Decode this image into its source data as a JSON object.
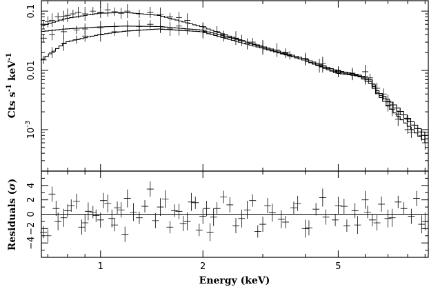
{
  "chart_data": [
    {
      "panel": "spectrum",
      "type": "scatter",
      "xlabel": "Energy (keV)",
      "ylabel": "Cts s^-1 keV^-1",
      "ylabel_text": {
        "base": "Cts s",
        "exp1": "-1",
        "mid": " keV",
        "exp2": "-1"
      },
      "xscale": "log",
      "yscale": "log",
      "xlim": [
        0.67,
        9.2
      ],
      "ylim": [
        0.0002,
        0.15
      ],
      "xticks": [
        {
          "value": 1,
          "label": "1"
        },
        {
          "value": 2,
          "label": "2"
        },
        {
          "value": 5,
          "label": "5"
        }
      ],
      "yticks": [
        {
          "value": 0.1,
          "label": "0.1"
        },
        {
          "value": 0.01,
          "label": "0.01"
        },
        {
          "value": 0.001,
          "label": "10",
          "exp": "-3"
        }
      ],
      "models": [
        {
          "x": [
            0.67,
            0.8,
            1.0,
            1.2,
            1.5,
            2.0,
            3.0,
            4.0,
            5.0,
            5.8,
            6.3,
            6.6,
            7.5,
            9.2
          ],
          "y": [
            0.055,
            0.075,
            0.092,
            0.095,
            0.085,
            0.055,
            0.025,
            0.015,
            0.009,
            0.008,
            0.006,
            0.004,
            0.0018,
            0.0006
          ]
        },
        {
          "x": [
            0.67,
            0.8,
            1.0,
            1.2,
            1.5,
            2.0,
            3.0,
            4.0,
            5.0,
            5.8,
            6.3,
            6.6,
            7.5,
            9.2
          ],
          "y": [
            0.045,
            0.05,
            0.054,
            0.056,
            0.055,
            0.048,
            0.026,
            0.016,
            0.01,
            0.0085,
            0.007,
            0.0045,
            0.0025,
            0.0008
          ]
        },
        {
          "x": [
            0.67,
            0.8,
            1.0,
            1.2,
            1.5,
            2.0,
            3.0,
            4.0,
            5.0,
            5.8,
            6.3,
            6.6,
            7.5,
            9.2
          ],
          "y": [
            0.014,
            0.03,
            0.04,
            0.046,
            0.05,
            0.045,
            0.024,
            0.015,
            0.0095,
            0.0082,
            0.0065,
            0.0042,
            0.0022,
            0.0007
          ]
        }
      ],
      "series": [
        {
          "x": [
            0.68,
            0.7,
            0.72,
            0.75,
            0.78,
            0.8,
            0.83,
            0.86,
            0.9,
            0.95,
            1.0,
            1.05,
            1.1,
            1.15,
            1.2,
            1.3,
            1.4,
            1.5,
            1.6,
            1.7,
            1.8,
            2.0,
            2.2,
            2.5,
            2.8,
            3.0,
            3.3,
            3.6,
            4.0,
            4.4,
            5.0,
            5.5,
            6.0,
            6.5,
            7.0,
            7.5,
            8.0
          ],
          "y": [
            0.06,
            0.066,
            0.07,
            0.08,
            0.082,
            0.085,
            0.09,
            0.095,
            0.09,
            0.1,
            0.095,
            0.105,
            0.098,
            0.092,
            0.1,
            0.09,
            0.095,
            0.088,
            0.08,
            0.078,
            0.07,
            0.055,
            0.045,
            0.035,
            0.03,
            0.025,
            0.022,
            0.018,
            0.015,
            0.012,
            0.009,
            0.0085,
            0.0075,
            0.005,
            0.0025,
            0.0015,
            0.001
          ]
        },
        {
          "x": [
            0.68,
            0.72,
            0.78,
            0.85,
            0.9,
            1.0,
            1.1,
            1.2,
            1.3,
            1.4,
            1.5,
            1.6,
            1.7,
            1.8,
            2.0,
            2.3,
            2.6,
            3.0,
            3.5,
            4.0,
            4.5,
            5.0,
            5.5,
            6.0,
            6.3,
            6.8,
            7.2,
            8.0,
            8.8
          ],
          "y": [
            0.035,
            0.04,
            0.045,
            0.048,
            0.05,
            0.052,
            0.055,
            0.056,
            0.055,
            0.06,
            0.055,
            0.05,
            0.056,
            0.05,
            0.048,
            0.04,
            0.032,
            0.025,
            0.02,
            0.016,
            0.013,
            0.01,
            0.009,
            0.008,
            0.006,
            0.004,
            0.0022,
            0.0015,
            0.0008
          ]
        },
        {
          "x": [
            0.68,
            0.72,
            0.78,
            0.85,
            0.9,
            1.0,
            1.1,
            1.2,
            1.3,
            1.5,
            1.7,
            2.0,
            2.3,
            2.7,
            3.0,
            3.5,
            4.0,
            4.5,
            5.0,
            5.5,
            6.0,
            6.2,
            6.5,
            7.0,
            7.5,
            8.2,
            9.0
          ],
          "y": [
            0.015,
            0.02,
            0.028,
            0.033,
            0.038,
            0.04,
            0.045,
            0.046,
            0.048,
            0.05,
            0.048,
            0.045,
            0.036,
            0.028,
            0.024,
            0.019,
            0.015,
            0.012,
            0.0095,
            0.0085,
            0.0095,
            0.0075,
            0.005,
            0.003,
            0.0018,
            0.0009,
            0.0006
          ]
        }
      ]
    },
    {
      "panel": "residuals",
      "type": "scatter",
      "xlabel": "Energy (keV)",
      "ylabel": "Residuals (σ)",
      "ylabel_text": {
        "base": "Residuals (",
        "sigma": "σ",
        "end": ")"
      },
      "xscale": "log",
      "xlim": [
        0.67,
        9.2
      ],
      "ylim": [
        -6,
        6
      ],
      "xticks": [
        {
          "value": 1,
          "label": "1"
        },
        {
          "value": 2,
          "label": "2"
        },
        {
          "value": 5,
          "label": "5"
        }
      ],
      "yticks": [
        {
          "value": 4,
          "label": "4"
        },
        {
          "value": 2,
          "label": "2"
        },
        {
          "value": 0,
          "label": "0"
        },
        {
          "value": -2,
          "label": "−2"
        },
        {
          "value": -4,
          "label": "−4"
        }
      ],
      "zero_line": 0,
      "series": [
        {
          "x": [
            0.68,
            0.72,
            0.75,
            0.8,
            0.85,
            0.9,
            0.95,
            1.0,
            1.05,
            1.1,
            1.15,
            1.2,
            1.3,
            1.4,
            1.5,
            1.6,
            1.7,
            1.8,
            1.9,
            2.0,
            2.1,
            2.2,
            2.4,
            2.6,
            2.8,
            3.0,
            3.2,
            3.5,
            3.8,
            4.0,
            4.3,
            4.6,
            5.0,
            5.3,
            5.6,
            6.0,
            6.3,
            6.7,
            7.2,
            7.8,
            8.5,
            9.0
          ],
          "y": [
            -2.5,
            2.8,
            -1,
            0.5,
            1.8,
            -1.2,
            0.3,
            -0.8,
            1.5,
            -1.5,
            0.6,
            2.2,
            -0.5,
            3.5,
            1,
            -1.8,
            0.4,
            -1,
            1.6,
            -0.3,
            -2.5,
            0.8,
            1.3,
            -0.6,
            1.9,
            -1.4,
            0.2,
            -1.1,
            1.5,
            -2,
            0.7,
            -0.4,
            1.2,
            -1.6,
            0.5,
            2,
            -0.8,
            1.4,
            -0.5,
            0.8,
            2.2,
            -1
          ]
        },
        {
          "x": [
            0.7,
            0.74,
            0.78,
            0.82,
            0.88,
            0.92,
            0.97,
            1.02,
            1.08,
            1.12,
            1.18,
            1.25,
            1.35,
            1.45,
            1.55,
            1.65,
            1.75,
            1.85,
            1.95,
            2.05,
            2.15,
            2.3,
            2.5,
            2.7,
            2.9,
            3.1,
            3.4,
            3.7,
            4.1,
            4.5,
            4.9,
            5.2,
            5.7,
            6.1,
            6.5,
            7.0,
            7.5,
            8.2,
            8.8
          ],
          "y": [
            -3,
            0.8,
            -0.5,
            1.2,
            -1.8,
            0.4,
            -0.2,
            1.9,
            -0.6,
            0.9,
            -2.8,
            0.3,
            1.1,
            -0.9,
            2.1,
            0.5,
            -1.3,
            1.7,
            -2.2,
            0.8,
            -0.4,
            2.4,
            -1.6,
            0.6,
            -2.4,
            1.2,
            -0.7,
            0.9,
            -1.9,
            2.3,
            -0.8,
            1.1,
            -1.5,
            0.3,
            -1.2,
            -0.6,
            1.7,
            -0.3,
            -1.4
          ]
        }
      ]
    }
  ]
}
